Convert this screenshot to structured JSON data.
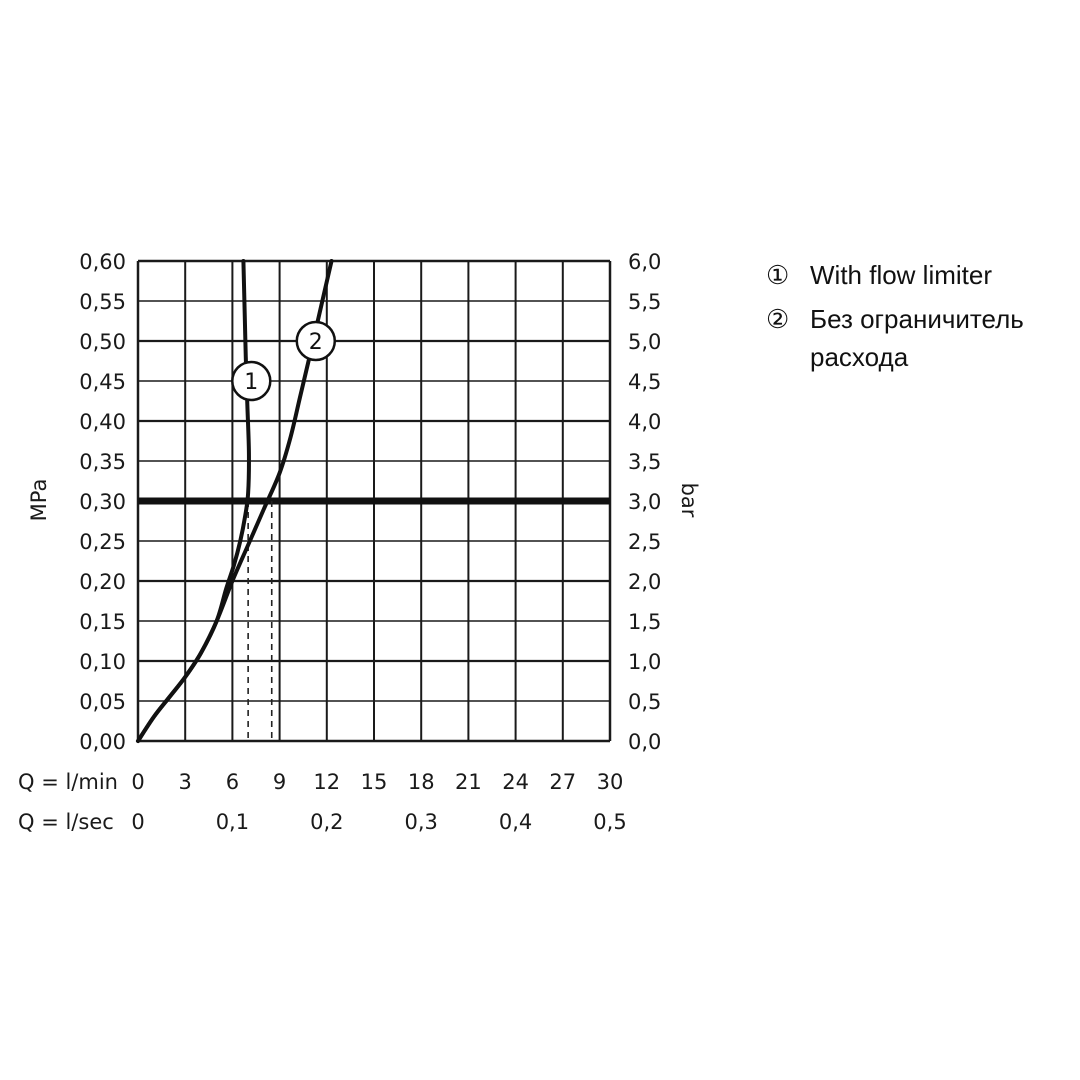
{
  "chart_data": {
    "type": "line",
    "ylabel_left": "MPa",
    "ylabel_right": "bar",
    "x_row1_label": "Q = l/min",
    "x_row2_label": "Q = l/sec",
    "xlim": [
      0,
      30
    ],
    "ylim": [
      0,
      0.6
    ],
    "x_ticks": [
      "0",
      "3",
      "6",
      "9",
      "12",
      "15",
      "18",
      "21",
      "24",
      "27",
      "30"
    ],
    "x2_ticks": [
      {
        "x": 0,
        "label": "0"
      },
      {
        "x": 6,
        "label": "0,1"
      },
      {
        "x": 12,
        "label": "0,2"
      },
      {
        "x": 18,
        "label": "0,3"
      },
      {
        "x": 24,
        "label": "0,4"
      },
      {
        "x": 30,
        "label": "0,5"
      }
    ],
    "y_ticks_left": [
      "0,00",
      "0,05",
      "0,10",
      "0,15",
      "0,20",
      "0,25",
      "0,30",
      "0,35",
      "0,40",
      "0,45",
      "0,50",
      "0,55",
      "0,60"
    ],
    "y_ticks_right": [
      "0,0",
      "0,5",
      "1,0",
      "1,5",
      "2,0",
      "2,5",
      "3,0",
      "3,5",
      "4,0",
      "4,5",
      "5,0",
      "5,5",
      "6,0"
    ],
    "reference_line_y": 0.3,
    "series": [
      {
        "label_marker": "1",
        "marker_at": [
          7.2,
          0.45
        ],
        "x": [
          0,
          1,
          2,
          3,
          4,
          5,
          5.6,
          6.1,
          6.5,
          6.8,
          7.0,
          7.05,
          6.95,
          6.85,
          6.8,
          6.75,
          6.7
        ],
        "y": [
          0,
          0.03,
          0.055,
          0.08,
          0.11,
          0.15,
          0.19,
          0.22,
          0.25,
          0.28,
          0.31,
          0.36,
          0.42,
          0.48,
          0.52,
          0.56,
          0.6
        ]
      },
      {
        "label_marker": "2",
        "marker_at": [
          11.3,
          0.5
        ],
        "x": [
          0,
          1,
          2,
          3,
          4,
          5,
          6,
          7,
          8,
          9,
          9.7,
          10.3,
          10.9,
          11.6,
          12.3
        ],
        "y": [
          0,
          0.03,
          0.055,
          0.08,
          0.11,
          0.15,
          0.2,
          0.245,
          0.29,
          0.335,
          0.38,
          0.43,
          0.48,
          0.54,
          0.6
        ]
      }
    ],
    "dashed_drops": [
      {
        "x": 7.0,
        "y": 0.3
      },
      {
        "x": 8.5,
        "y": 0.3
      }
    ]
  },
  "legend": [
    {
      "num": "①",
      "text": "With flow limiter"
    },
    {
      "num": "②",
      "text": "Без ограничитель расхода"
    }
  ]
}
